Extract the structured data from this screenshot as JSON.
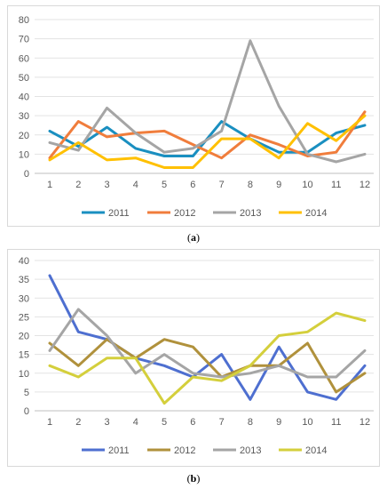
{
  "captions": {
    "a": "a",
    "b": "b"
  },
  "chart_data": [
    {
      "type": "line",
      "panel": "a",
      "x": [
        1,
        2,
        3,
        4,
        5,
        6,
        7,
        8,
        9,
        10,
        11,
        12
      ],
      "ylim": [
        0,
        80
      ],
      "yticks": [
        0,
        10,
        20,
        30,
        40,
        50,
        60,
        70,
        80
      ],
      "grid": true,
      "legend": "bottom",
      "series": [
        {
          "name": "2011",
          "color": "#1a8fc0",
          "values": [
            22,
            14,
            24,
            13,
            9,
            9,
            27,
            18,
            11,
            11,
            21,
            25
          ]
        },
        {
          "name": "2012",
          "color": "#f07d3c",
          "values": [
            8,
            27,
            19,
            21,
            22,
            15,
            8,
            20,
            15,
            9,
            11,
            32
          ]
        },
        {
          "name": "2013",
          "color": "#a5a5a5",
          "values": [
            16,
            12,
            34,
            21,
            11,
            13,
            22,
            69,
            35,
            10,
            6,
            10
          ]
        },
        {
          "name": "2014",
          "color": "#ffc000",
          "values": [
            7,
            16,
            7,
            8,
            3,
            3,
            18,
            18,
            8,
            26,
            17,
            30
          ]
        }
      ]
    },
    {
      "type": "line",
      "panel": "b",
      "x": [
        1,
        2,
        3,
        4,
        5,
        6,
        7,
        8,
        9,
        10,
        11,
        12
      ],
      "ylim": [
        0,
        40
      ],
      "yticks": [
        0,
        5,
        10,
        15,
        20,
        25,
        30,
        35,
        40
      ],
      "grid": true,
      "legend": "bottom",
      "series": [
        {
          "name": "2011",
          "color": "#4e6fd0",
          "values": [
            36,
            21,
            19,
            14,
            12,
            9,
            15,
            3,
            17,
            5,
            3,
            12
          ]
        },
        {
          "name": "2012",
          "color": "#b0913c",
          "values": [
            18,
            12,
            19,
            14,
            19,
            17,
            9,
            12,
            12,
            18,
            5,
            10
          ]
        },
        {
          "name": "2013",
          "color": "#a5a5a5",
          "values": [
            16,
            27,
            20,
            10,
            15,
            10,
            9,
            10,
            12,
            9,
            9,
            16
          ]
        },
        {
          "name": "2014",
          "color": "#d4cf3c",
          "values": [
            12,
            9,
            14,
            14,
            2,
            9,
            8,
            12,
            20,
            21,
            26,
            24
          ]
        }
      ]
    }
  ]
}
